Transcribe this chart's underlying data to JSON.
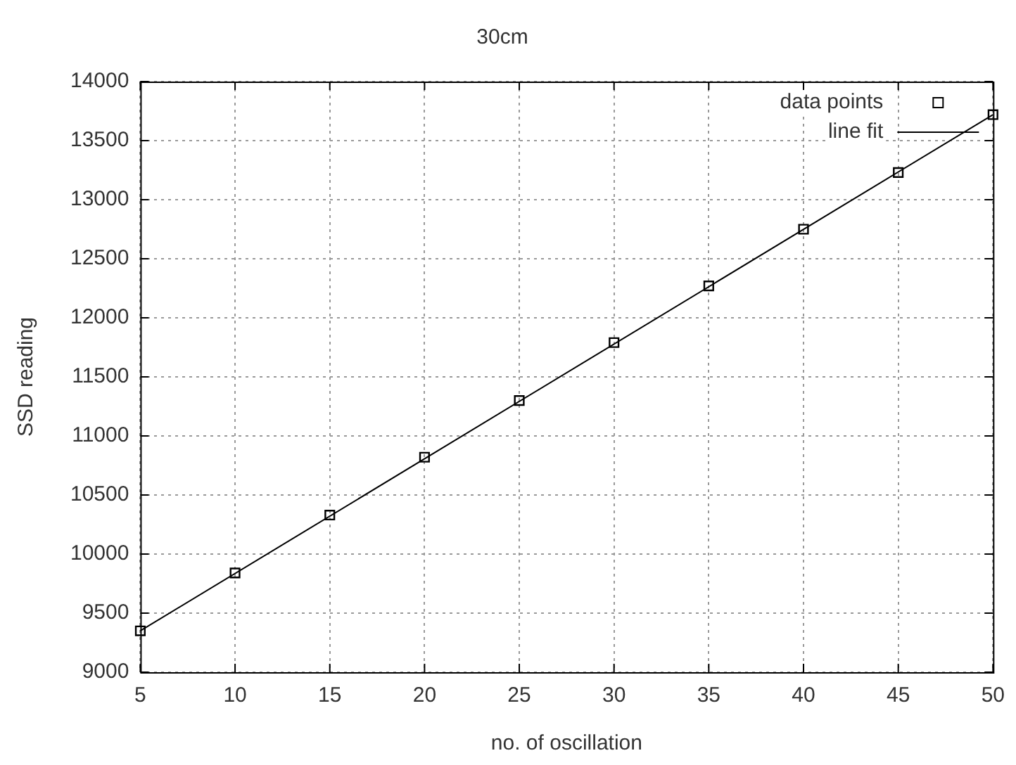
{
  "chart_data": {
    "type": "scatter",
    "title": "30cm",
    "xlabel": "no. of oscillation",
    "ylabel": "SSD reading",
    "xlim": [
      5,
      50
    ],
    "xticks": [
      5,
      10,
      15,
      20,
      25,
      30,
      35,
      40,
      45,
      50
    ],
    "ylim": [
      9000,
      14000
    ],
    "yticks": [
      9000,
      9500,
      10000,
      10500,
      11000,
      11500,
      12000,
      12500,
      13000,
      13500,
      14000
    ],
    "grid": true,
    "legend": "top right",
    "series": [
      {
        "name": "data points",
        "type": "scatter",
        "marker": "square",
        "color": "#000000",
        "x": [
          5,
          10,
          15,
          20,
          25,
          30,
          35,
          40,
          45,
          50
        ],
        "values": [
          9350,
          9840,
          10330,
          10820,
          11300,
          11790,
          12270,
          12750,
          13230,
          13720
        ]
      },
      {
        "name": "line fit",
        "type": "line",
        "marker": "none",
        "line_style": "solid",
        "color": "#000000",
        "x": [
          5,
          50
        ],
        "values": [
          9350,
          13720
        ]
      }
    ]
  }
}
